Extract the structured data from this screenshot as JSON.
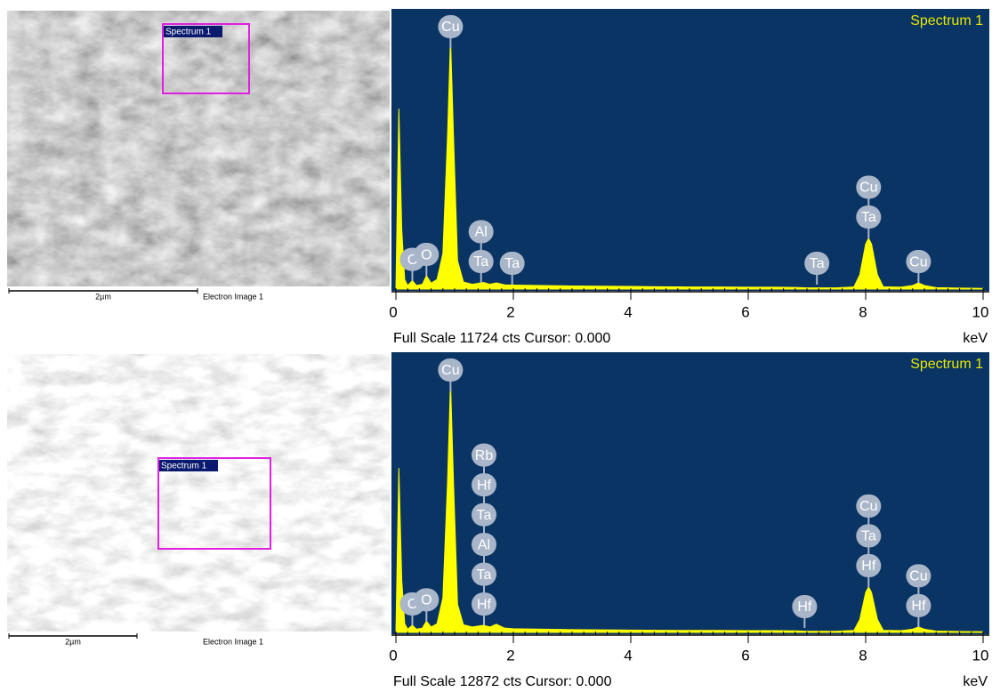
{
  "images": [
    {
      "region_label": "Spectrum 1",
      "scale_bar": "2µm",
      "caption": "Electron Image 1"
    },
    {
      "region_label": "Spectrum 1",
      "scale_bar": "2µm",
      "caption": "Electron Image 1"
    }
  ],
  "chart_data": [
    {
      "type": "area",
      "title": "Spectrum 1",
      "color": "#ffff00",
      "x": [
        0,
        0.05,
        0.1,
        0.15,
        0.2,
        0.28,
        0.35,
        0.45,
        0.52,
        0.6,
        0.7,
        0.8,
        0.88,
        0.93,
        0.98,
        1.05,
        1.15,
        1.3,
        1.49,
        1.6,
        1.71,
        1.85,
        2,
        2.5,
        3,
        3.5,
        4,
        4.5,
        5,
        5.5,
        6,
        6.5,
        6.8,
        7,
        7.5,
        7.8,
        7.9,
        8,
        8.05,
        8.1,
        8.2,
        8.3,
        8.6,
        8.8,
        8.9,
        9,
        9.2,
        9.6,
        10
      ],
      "values": [
        0,
        7600,
        2500,
        400,
        150,
        350,
        150,
        200,
        560,
        250,
        400,
        1500,
        6500,
        10600,
        6500,
        1200,
        300,
        200,
        280,
        200,
        260,
        180,
        170,
        150,
        130,
        120,
        110,
        100,
        90,
        90,
        80,
        80,
        70,
        50,
        50,
        90,
        600,
        1900,
        2135,
        1900,
        600,
        100,
        80,
        150,
        260,
        150,
        60,
        40,
        30
      ],
      "xlim": [
        0,
        10
      ],
      "xticks": [
        0,
        2,
        4,
        6,
        8,
        10
      ],
      "ylim": [
        0,
        11724
      ],
      "status": "Full Scale 11724 cts Cursor: 0.000",
      "x_unit": "keV",
      "peak_labels": [
        {
          "x": 0.28,
          "labels": [
            "C"
          ]
        },
        {
          "x": 0.52,
          "labels": [
            "O"
          ]
        },
        {
          "x": 0.93,
          "labels": [
            "Cu"
          ]
        },
        {
          "x": 1.45,
          "labels": [
            "Ta",
            "Al"
          ]
        },
        {
          "x": 1.98,
          "labels": [
            "Ta"
          ]
        },
        {
          "x": 7.17,
          "labels": [
            "Ta"
          ]
        },
        {
          "x": 8.05,
          "labels": [
            "Ta",
            "Cu"
          ]
        },
        {
          "x": 8.9,
          "labels": [
            "Cu"
          ]
        }
      ]
    },
    {
      "type": "area",
      "title": "Spectrum 1",
      "color": "#ffff00",
      "x": [
        0,
        0.05,
        0.1,
        0.15,
        0.2,
        0.28,
        0.35,
        0.45,
        0.52,
        0.6,
        0.7,
        0.8,
        0.88,
        0.93,
        0.98,
        1.05,
        1.15,
        1.3,
        1.49,
        1.6,
        1.71,
        1.85,
        2,
        2.5,
        3,
        3.5,
        4,
        4.5,
        5,
        5.5,
        6,
        6.5,
        6.8,
        7,
        7.5,
        7.8,
        7.9,
        8,
        8.05,
        8.1,
        8.2,
        8.3,
        8.6,
        8.8,
        8.9,
        9,
        9.2,
        9.6,
        10
      ],
      "values": [
        0,
        7600,
        2400,
        400,
        150,
        330,
        150,
        200,
        520,
        250,
        400,
        1600,
        7000,
        11640,
        7000,
        1300,
        350,
        250,
        330,
        250,
        380,
        200,
        170,
        150,
        130,
        120,
        110,
        100,
        90,
        90,
        80,
        80,
        70,
        50,
        50,
        90,
        600,
        1850,
        2100,
        1850,
        600,
        100,
        80,
        150,
        250,
        150,
        60,
        40,
        30
      ],
      "xlim": [
        0,
        10
      ],
      "xticks": [
        0,
        2,
        4,
        6,
        8,
        10
      ],
      "ylim": [
        0,
        12872
      ],
      "status": "Full Scale 12872 cts Cursor: 0.000",
      "x_unit": "keV",
      "peak_labels": [
        {
          "x": 0.28,
          "labels": [
            "C"
          ]
        },
        {
          "x": 0.52,
          "labels": [
            "O"
          ]
        },
        {
          "x": 0.93,
          "labels": [
            "Cu"
          ]
        },
        {
          "x": 1.5,
          "labels": [
            "Hf",
            "Ta",
            "Al",
            "Ta",
            "Hf",
            "Rb"
          ]
        },
        {
          "x": 6.96,
          "labels": [
            "Hf"
          ]
        },
        {
          "x": 8.05,
          "labels": [
            "Hf",
            "Ta",
            "Cu"
          ]
        },
        {
          "x": 8.9,
          "labels": [
            "Hf",
            "Cu"
          ]
        }
      ]
    }
  ]
}
